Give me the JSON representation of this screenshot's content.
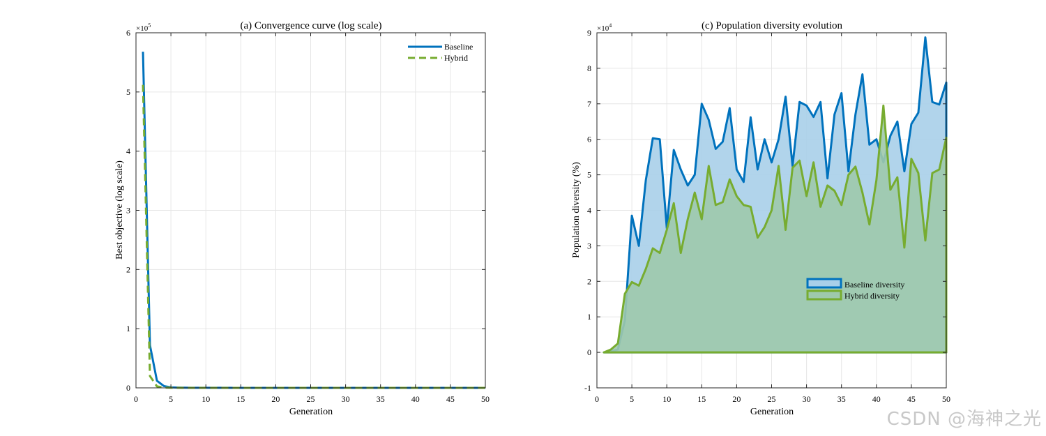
{
  "colors": {
    "baseline": "#0072BD",
    "hybrid": "#77AC30",
    "baseline_fill": "#a9cfe9",
    "overlap_fill": "#9ec9ac",
    "grid": "#e6e6e6",
    "axis": "#262626"
  },
  "watermark": "CSDN @海神之光",
  "chart_data": [
    {
      "type": "line",
      "title": "(a) Convergence curve (log scale)",
      "xlabel": "Generation",
      "ylabel": "Best objective (log scale)",
      "xlim": [
        0,
        50
      ],
      "ylim": [
        0,
        600000
      ],
      "xticks": [
        0,
        5,
        10,
        15,
        20,
        25,
        30,
        35,
        40,
        45,
        50
      ],
      "yticks": [
        0,
        100000,
        200000,
        300000,
        400000,
        500000,
        600000
      ],
      "ytick_labels": [
        "0",
        "1",
        "2",
        "3",
        "4",
        "5",
        "6"
      ],
      "exponent_label": "×10",
      "exponent_power": "5",
      "grid": true,
      "legend_position": "top-right",
      "x": [
        1,
        2,
        3,
        4,
        5,
        6,
        7,
        8,
        9,
        10,
        11,
        12,
        13,
        14,
        15,
        16,
        17,
        18,
        19,
        20,
        21,
        22,
        23,
        24,
        25,
        26,
        27,
        28,
        29,
        30,
        31,
        32,
        33,
        34,
        35,
        36,
        37,
        38,
        39,
        40,
        41,
        42,
        43,
        44,
        45,
        46,
        47,
        48,
        49,
        50
      ],
      "series": [
        {
          "name": "Baseline",
          "style": "solid",
          "color": "#0072BD",
          "values": [
            568000,
            72000,
            12000,
            3000,
            900,
            500,
            300,
            200,
            150,
            120,
            100,
            90,
            80,
            70,
            60,
            55,
            50,
            45,
            40,
            38,
            36,
            34,
            32,
            30,
            28,
            26,
            25,
            24,
            23,
            22,
            21,
            20,
            19,
            18,
            17,
            16,
            15,
            14,
            13,
            12,
            11,
            10,
            10,
            9,
            9,
            8,
            8,
            7,
            7,
            6
          ]
        },
        {
          "name": "Hybrid",
          "style": "dashed",
          "color": "#77AC30",
          "values": [
            512000,
            20000,
            2500,
            500,
            200,
            100,
            60,
            40,
            30,
            25,
            20,
            18,
            16,
            14,
            12,
            11,
            10,
            9,
            8,
            7,
            7,
            6,
            6,
            5,
            5,
            5,
            4,
            4,
            4,
            4,
            3,
            3,
            3,
            3,
            3,
            3,
            2,
            2,
            2,
            2,
            2,
            2,
            2,
            2,
            2,
            2,
            2,
            2,
            2,
            2
          ]
        }
      ]
    },
    {
      "type": "area",
      "title": "(c) Population diversity evolution",
      "xlabel": "Generation",
      "ylabel": "Population diversity (%)",
      "xlim": [
        0,
        50
      ],
      "ylim": [
        -10000,
        90000
      ],
      "xticks": [
        0,
        5,
        10,
        15,
        20,
        25,
        30,
        35,
        40,
        45,
        50
      ],
      "yticks": [
        -10000,
        0,
        10000,
        20000,
        30000,
        40000,
        50000,
        60000,
        70000,
        80000,
        90000
      ],
      "ytick_labels": [
        "-1",
        "0",
        "1",
        "2",
        "3",
        "4",
        "5",
        "6",
        "7",
        "8",
        "9"
      ],
      "exponent_label": "×10",
      "exponent_power": "4",
      "grid": true,
      "legend_position": "middle-right",
      "x": [
        1,
        2,
        3,
        4,
        5,
        6,
        7,
        8,
        9,
        10,
        11,
        12,
        13,
        14,
        15,
        16,
        17,
        18,
        19,
        20,
        21,
        22,
        23,
        24,
        25,
        26,
        27,
        28,
        29,
        30,
        31,
        32,
        33,
        34,
        35,
        36,
        37,
        38,
        39,
        40,
        41,
        42,
        43,
        44,
        45,
        46,
        47,
        48,
        49,
        50
      ],
      "series": [
        {
          "name": "Baseline diversity",
          "color": "#0072BD",
          "values": [
            0,
            300,
            800,
            9000,
            38500,
            30000,
            48500,
            60300,
            60000,
            35000,
            57000,
            51500,
            47000,
            50000,
            70000,
            65500,
            57300,
            59300,
            68800,
            51500,
            48000,
            66200,
            51500,
            60000,
            53500,
            60000,
            72000,
            52500,
            70500,
            69500,
            66300,
            70500,
            49000,
            67000,
            73000,
            51000,
            67000,
            78300,
            58500,
            60000,
            53500,
            61000,
            65000,
            51000,
            64300,
            67500,
            88700,
            70500,
            69800,
            76000
          ]
        },
        {
          "name": "Hybrid diversity",
          "color": "#77AC30",
          "values": [
            0,
            800,
            2500,
            16500,
            19800,
            18800,
            23500,
            29300,
            28000,
            34500,
            42000,
            28000,
            37500,
            45000,
            37500,
            52500,
            41500,
            42300,
            48700,
            44000,
            41500,
            41000,
            32300,
            35300,
            40000,
            52500,
            34500,
            52000,
            54000,
            44000,
            53500,
            41000,
            47000,
            45500,
            41500,
            50000,
            52300,
            45000,
            36000,
            48500,
            69500,
            45800,
            49300,
            29500,
            54500,
            50500,
            31500,
            50500,
            51500,
            60500
          ]
        }
      ]
    }
  ]
}
